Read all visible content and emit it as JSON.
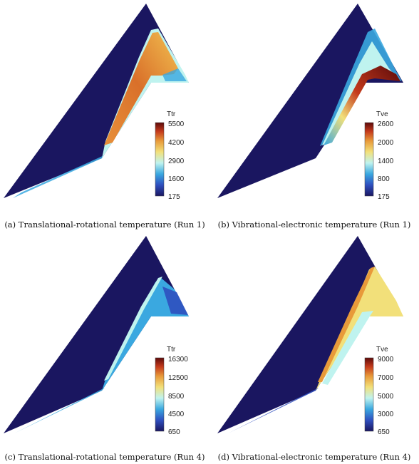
{
  "panels": [
    {
      "caption": "(a) Translational-rotational temperature (Run 1)",
      "colorbar": {
        "title": "Ttr",
        "ticks": [
          "5500",
          "4200",
          "2900",
          "1600",
          "175"
        ]
      }
    },
    {
      "caption": "(b) Vibrational-electronic temperature (Run 1)",
      "colorbar": {
        "title": "Tve",
        "ticks": [
          "2600",
          "2000",
          "1400",
          "800",
          "175"
        ]
      }
    },
    {
      "caption": "(c) Translational-rotational temperature (Run 4)",
      "colorbar": {
        "title": "Ttr",
        "ticks": [
          "16300",
          "12500",
          "8500",
          "4500",
          "650"
        ]
      }
    },
    {
      "caption": "(d) Vibrational-electronic temperature (Run 4)",
      "colorbar": {
        "title": "Tve",
        "ticks": [
          "9000",
          "7000",
          "5000",
          "3000",
          "650"
        ]
      }
    }
  ],
  "colors": {
    "background_field": "#1a1660",
    "colormap_stops": [
      "#1a1660",
      "#2f4fbf",
      "#3aa8e0",
      "#bff3ef",
      "#f2e07a",
      "#e89a3a",
      "#c43a1c",
      "#5c0a0a"
    ]
  }
}
